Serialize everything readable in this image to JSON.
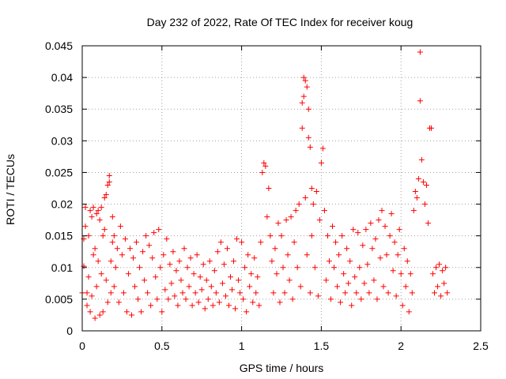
{
  "chart_data": {
    "type": "scatter",
    "title": "Day 232 of 2022, Rate Of TEC Index for receiver koug",
    "xlabel": "GPS time / hours",
    "ylabel": "ROTI / TECUs",
    "xlim": [
      0,
      2.5
    ],
    "ylim": [
      0,
      0.045
    ],
    "xticks": [
      0,
      0.5,
      1,
      1.5,
      2,
      2.5
    ],
    "xtick_labels": [
      "0",
      "0.5",
      "1",
      "1.5",
      "2",
      "2.5"
    ],
    "yticks": [
      0,
      0.005,
      0.01,
      0.015,
      0.02,
      0.025,
      0.03,
      0.035,
      0.04,
      0.045
    ],
    "ytick_labels": [
      "0",
      "0.005",
      "0.01",
      "0.015",
      "0.02",
      "0.025",
      "0.03",
      "0.035",
      "0.04",
      "0.045"
    ],
    "grid": true,
    "marker": "+",
    "color": "#ff0000",
    "series": [
      {
        "points": [
          [
            0.0,
            0.006
          ],
          [
            0.01,
            0.0102
          ],
          [
            0.01,
            0.0145
          ],
          [
            0.02,
            0.0165
          ],
          [
            0.02,
            0.0195
          ],
          [
            0.03,
            0.006
          ],
          [
            0.03,
            0.004
          ],
          [
            0.04,
            0.0085
          ],
          [
            0.04,
            0.015
          ],
          [
            0.05,
            0.019
          ],
          [
            0.05,
            0.003
          ],
          [
            0.06,
            0.018
          ],
          [
            0.06,
            0.0055
          ],
          [
            0.07,
            0.0195
          ],
          [
            0.07,
            0.012
          ],
          [
            0.08,
            0.002
          ],
          [
            0.08,
            0.013
          ],
          [
            0.09,
            0.0185
          ],
          [
            0.09,
            0.007
          ],
          [
            0.1,
            0.011
          ],
          [
            0.1,
            0.019
          ],
          [
            0.11,
            0.0025
          ],
          [
            0.11,
            0.0175
          ],
          [
            0.12,
            0.0195
          ],
          [
            0.12,
            0.009
          ],
          [
            0.13,
            0.003
          ],
          [
            0.13,
            0.015
          ],
          [
            0.14,
            0.016
          ],
          [
            0.14,
            0.021
          ],
          [
            0.15,
            0.008
          ],
          [
            0.15,
            0.0215
          ],
          [
            0.16,
            0.023
          ],
          [
            0.16,
            0.0045
          ],
          [
            0.17,
            0.0245
          ],
          [
            0.17,
            0.0235
          ],
          [
            0.18,
            0.011
          ],
          [
            0.18,
            0.006
          ],
          [
            0.19,
            0.014
          ],
          [
            0.19,
            0.018
          ],
          [
            0.2,
            0.015
          ],
          [
            0.2,
            0.007
          ],
          [
            0.21,
            0.01
          ],
          [
            0.22,
            0.013
          ],
          [
            0.23,
            0.0045
          ],
          [
            0.24,
            0.0165
          ],
          [
            0.25,
            0.012
          ],
          [
            0.26,
            0.006
          ],
          [
            0.27,
            0.0145
          ],
          [
            0.28,
            0.003
          ],
          [
            0.29,
            0.009
          ],
          [
            0.3,
            0.013
          ],
          [
            0.31,
            0.0025
          ],
          [
            0.32,
            0.0115
          ],
          [
            0.33,
            0.007
          ],
          [
            0.34,
            0.014
          ],
          [
            0.35,
            0.005
          ],
          [
            0.36,
            0.01
          ],
          [
            0.37,
            0.003
          ],
          [
            0.38,
            0.0125
          ],
          [
            0.39,
            0.008
          ],
          [
            0.4,
            0.015
          ],
          [
            0.41,
            0.006
          ],
          [
            0.42,
            0.0135
          ],
          [
            0.43,
            0.004
          ],
          [
            0.44,
            0.0115
          ],
          [
            0.45,
            0.0155
          ],
          [
            0.46,
            0.0085
          ],
          [
            0.47,
            0.005
          ],
          [
            0.48,
            0.016
          ],
          [
            0.49,
            0.01
          ],
          [
            0.5,
            0.003
          ],
          [
            0.51,
            0.012
          ],
          [
            0.52,
            0.0065
          ],
          [
            0.53,
            0.0145
          ],
          [
            0.54,
            0.005
          ],
          [
            0.55,
            0.0105
          ],
          [
            0.56,
            0.0075
          ],
          [
            0.57,
            0.0125
          ],
          [
            0.58,
            0.0055
          ],
          [
            0.59,
            0.0095
          ],
          [
            0.6,
            0.004
          ],
          [
            0.61,
            0.011
          ],
          [
            0.62,
            0.008
          ],
          [
            0.63,
            0.006
          ],
          [
            0.64,
            0.013
          ],
          [
            0.65,
            0.005
          ],
          [
            0.66,
            0.01
          ],
          [
            0.67,
            0.007
          ],
          [
            0.68,
            0.0115
          ],
          [
            0.69,
            0.004
          ],
          [
            0.7,
            0.009
          ],
          [
            0.71,
            0.006
          ],
          [
            0.72,
            0.012
          ],
          [
            0.73,
            0.0045
          ],
          [
            0.74,
            0.0085
          ],
          [
            0.75,
            0.0065
          ],
          [
            0.76,
            0.0105
          ],
          [
            0.77,
            0.0035
          ],
          [
            0.78,
            0.008
          ],
          [
            0.79,
            0.005
          ],
          [
            0.8,
            0.011
          ],
          [
            0.81,
            0.007
          ],
          [
            0.82,
            0.004
          ],
          [
            0.83,
            0.0095
          ],
          [
            0.84,
            0.006
          ],
          [
            0.85,
            0.0125
          ],
          [
            0.86,
            0.0045
          ],
          [
            0.87,
            0.014
          ],
          [
            0.88,
            0.0075
          ],
          [
            0.89,
            0.0105
          ],
          [
            0.9,
            0.0055
          ],
          [
            0.91,
            0.013
          ],
          [
            0.92,
            0.004
          ],
          [
            0.93,
            0.0085
          ],
          [
            0.94,
            0.0065
          ],
          [
            0.95,
            0.011
          ],
          [
            0.96,
            0.0035
          ],
          [
            0.97,
            0.0145
          ],
          [
            0.98,
            0.008
          ],
          [
            0.99,
            0.006
          ],
          [
            1.0,
            0.014
          ],
          [
            1.01,
            0.005
          ],
          [
            1.02,
            0.01
          ],
          [
            1.03,
            0.003
          ],
          [
            1.04,
            0.012
          ],
          [
            1.05,
            0.007
          ],
          [
            1.06,
            0.009
          ],
          [
            1.07,
            0.0045
          ],
          [
            1.08,
            0.0115
          ],
          [
            1.09,
            0.006
          ],
          [
            1.1,
            0.0085
          ],
          [
            1.11,
            0.004
          ],
          [
            1.12,
            0.014
          ],
          [
            1.13,
            0.025
          ],
          [
            1.14,
            0.0265
          ],
          [
            1.15,
            0.026
          ],
          [
            1.16,
            0.018
          ],
          [
            1.17,
            0.0225
          ],
          [
            1.18,
            0.015
          ],
          [
            1.19,
            0.011
          ],
          [
            1.2,
            0.006
          ],
          [
            1.21,
            0.013
          ],
          [
            1.22,
            0.009
          ],
          [
            1.23,
            0.017
          ],
          [
            1.24,
            0.0045
          ],
          [
            1.25,
            0.015
          ],
          [
            1.26,
            0.01
          ],
          [
            1.27,
            0.006
          ],
          [
            1.28,
            0.0175
          ],
          [
            1.29,
            0.012
          ],
          [
            1.3,
            0.008
          ],
          [
            1.31,
            0.018
          ],
          [
            1.32,
            0.005
          ],
          [
            1.33,
            0.014
          ],
          [
            1.34,
            0.019
          ],
          [
            1.35,
            0.01
          ],
          [
            1.36,
            0.02
          ],
          [
            1.37,
            0.007
          ],
          [
            1.38,
            0.032
          ],
          [
            1.38,
            0.036
          ],
          [
            1.39,
            0.04
          ],
          [
            1.39,
            0.037
          ],
          [
            1.4,
            0.0395
          ],
          [
            1.4,
            0.021
          ],
          [
            1.41,
            0.0385
          ],
          [
            1.41,
            0.012
          ],
          [
            1.42,
            0.035
          ],
          [
            1.42,
            0.0305
          ],
          [
            1.43,
            0.029
          ],
          [
            1.43,
            0.006
          ],
          [
            1.44,
            0.0225
          ],
          [
            1.44,
            0.015
          ],
          [
            1.45,
            0.02
          ],
          [
            1.46,
            0.01
          ],
          [
            1.47,
            0.022
          ],
          [
            1.48,
            0.0055
          ],
          [
            1.49,
            0.0175
          ],
          [
            1.5,
            0.0265
          ],
          [
            1.51,
            0.0288
          ],
          [
            1.52,
            0.019
          ],
          [
            1.53,
            0.008
          ],
          [
            1.54,
            0.015
          ],
          [
            1.55,
            0.011
          ],
          [
            1.56,
            0.005
          ],
          [
            1.57,
            0.0165
          ],
          [
            1.58,
            0.01
          ],
          [
            1.59,
            0.014
          ],
          [
            1.6,
            0.007
          ],
          [
            1.61,
            0.012
          ],
          [
            1.62,
            0.0045
          ],
          [
            1.63,
            0.015
          ],
          [
            1.64,
            0.009
          ],
          [
            1.65,
            0.006
          ],
          [
            1.66,
            0.013
          ],
          [
            1.67,
            0.0075
          ],
          [
            1.68,
            0.011
          ],
          [
            1.69,
            0.004
          ],
          [
            1.7,
            0.016
          ],
          [
            1.71,
            0.0085
          ],
          [
            1.72,
            0.006
          ],
          [
            1.73,
            0.0155
          ],
          [
            1.74,
            0.01
          ],
          [
            1.75,
            0.005
          ],
          [
            1.76,
            0.0135
          ],
          [
            1.77,
            0.0075
          ],
          [
            1.78,
            0.016
          ],
          [
            1.79,
            0.0105
          ],
          [
            1.8,
            0.006
          ],
          [
            1.81,
            0.017
          ],
          [
            1.82,
            0.013
          ],
          [
            1.83,
            0.008
          ],
          [
            1.84,
            0.0145
          ],
          [
            1.85,
            0.005
          ],
          [
            1.86,
            0.0175
          ],
          [
            1.87,
            0.0115
          ],
          [
            1.88,
            0.019
          ],
          [
            1.89,
            0.007
          ],
          [
            1.9,
            0.0165
          ],
          [
            1.91,
            0.012
          ],
          [
            1.92,
            0.006
          ],
          [
            1.93,
            0.015
          ],
          [
            1.94,
            0.0185
          ],
          [
            1.95,
            0.0095
          ],
          [
            1.96,
            0.014
          ],
          [
            1.97,
            0.0055
          ],
          [
            1.98,
            0.012
          ],
          [
            1.99,
            0.016
          ],
          [
            2.0,
            0.009
          ],
          [
            2.01,
            0.004
          ],
          [
            2.02,
            0.013
          ],
          [
            2.03,
            0.007
          ],
          [
            2.04,
            0.011
          ],
          [
            2.05,
            0.003
          ],
          [
            2.06,
            0.009
          ],
          [
            2.07,
            0.006
          ],
          [
            2.08,
            0.019
          ],
          [
            2.09,
            0.022
          ],
          [
            2.1,
            0.021
          ],
          [
            2.11,
            0.024
          ],
          [
            2.12,
            0.044
          ],
          [
            2.12,
            0.0363
          ],
          [
            2.13,
            0.027
          ],
          [
            2.14,
            0.0235
          ],
          [
            2.15,
            0.02
          ],
          [
            2.16,
            0.023
          ],
          [
            2.17,
            0.017
          ],
          [
            2.18,
            0.032
          ],
          [
            2.19,
            0.032
          ],
          [
            2.2,
            0.009
          ],
          [
            2.21,
            0.006
          ],
          [
            2.22,
            0.01
          ],
          [
            2.23,
            0.007
          ],
          [
            2.24,
            0.0105
          ],
          [
            2.25,
            0.0055
          ],
          [
            2.26,
            0.0095
          ],
          [
            2.27,
            0.0075
          ],
          [
            2.28,
            0.01
          ],
          [
            2.29,
            0.006
          ]
        ]
      }
    ]
  }
}
